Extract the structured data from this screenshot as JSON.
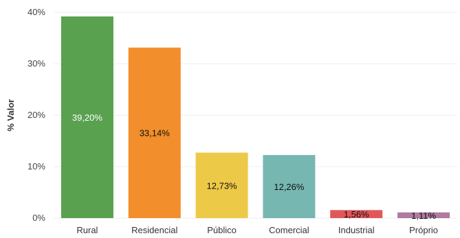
{
  "chart_data": {
    "type": "bar",
    "title": "",
    "xlabel": "",
    "ylabel": "% Valor",
    "ylim": [
      0,
      40
    ],
    "yticks": [
      0,
      10,
      20,
      30,
      40
    ],
    "ytick_labels": [
      "0%",
      "10%",
      "20%",
      "30%",
      "40%"
    ],
    "grid": true,
    "categories": [
      "Rural",
      "Residencial",
      "Público",
      "Comercial",
      "Industrial",
      "Próprio"
    ],
    "values": [
      39.2,
      33.14,
      12.73,
      12.26,
      1.56,
      1.11
    ],
    "data_labels": [
      "39,20%",
      "33,14%",
      "12,73%",
      "12,26%",
      "1,56%",
      "1,11%"
    ],
    "colors": [
      "#59a14f",
      "#f28e2b",
      "#edc948",
      "#76b7b2",
      "#e15759",
      "#b07aa1"
    ],
    "label_colors": [
      "#ffffff",
      "#111111",
      "#111111",
      "#111111",
      "#111111",
      "#111111"
    ]
  }
}
